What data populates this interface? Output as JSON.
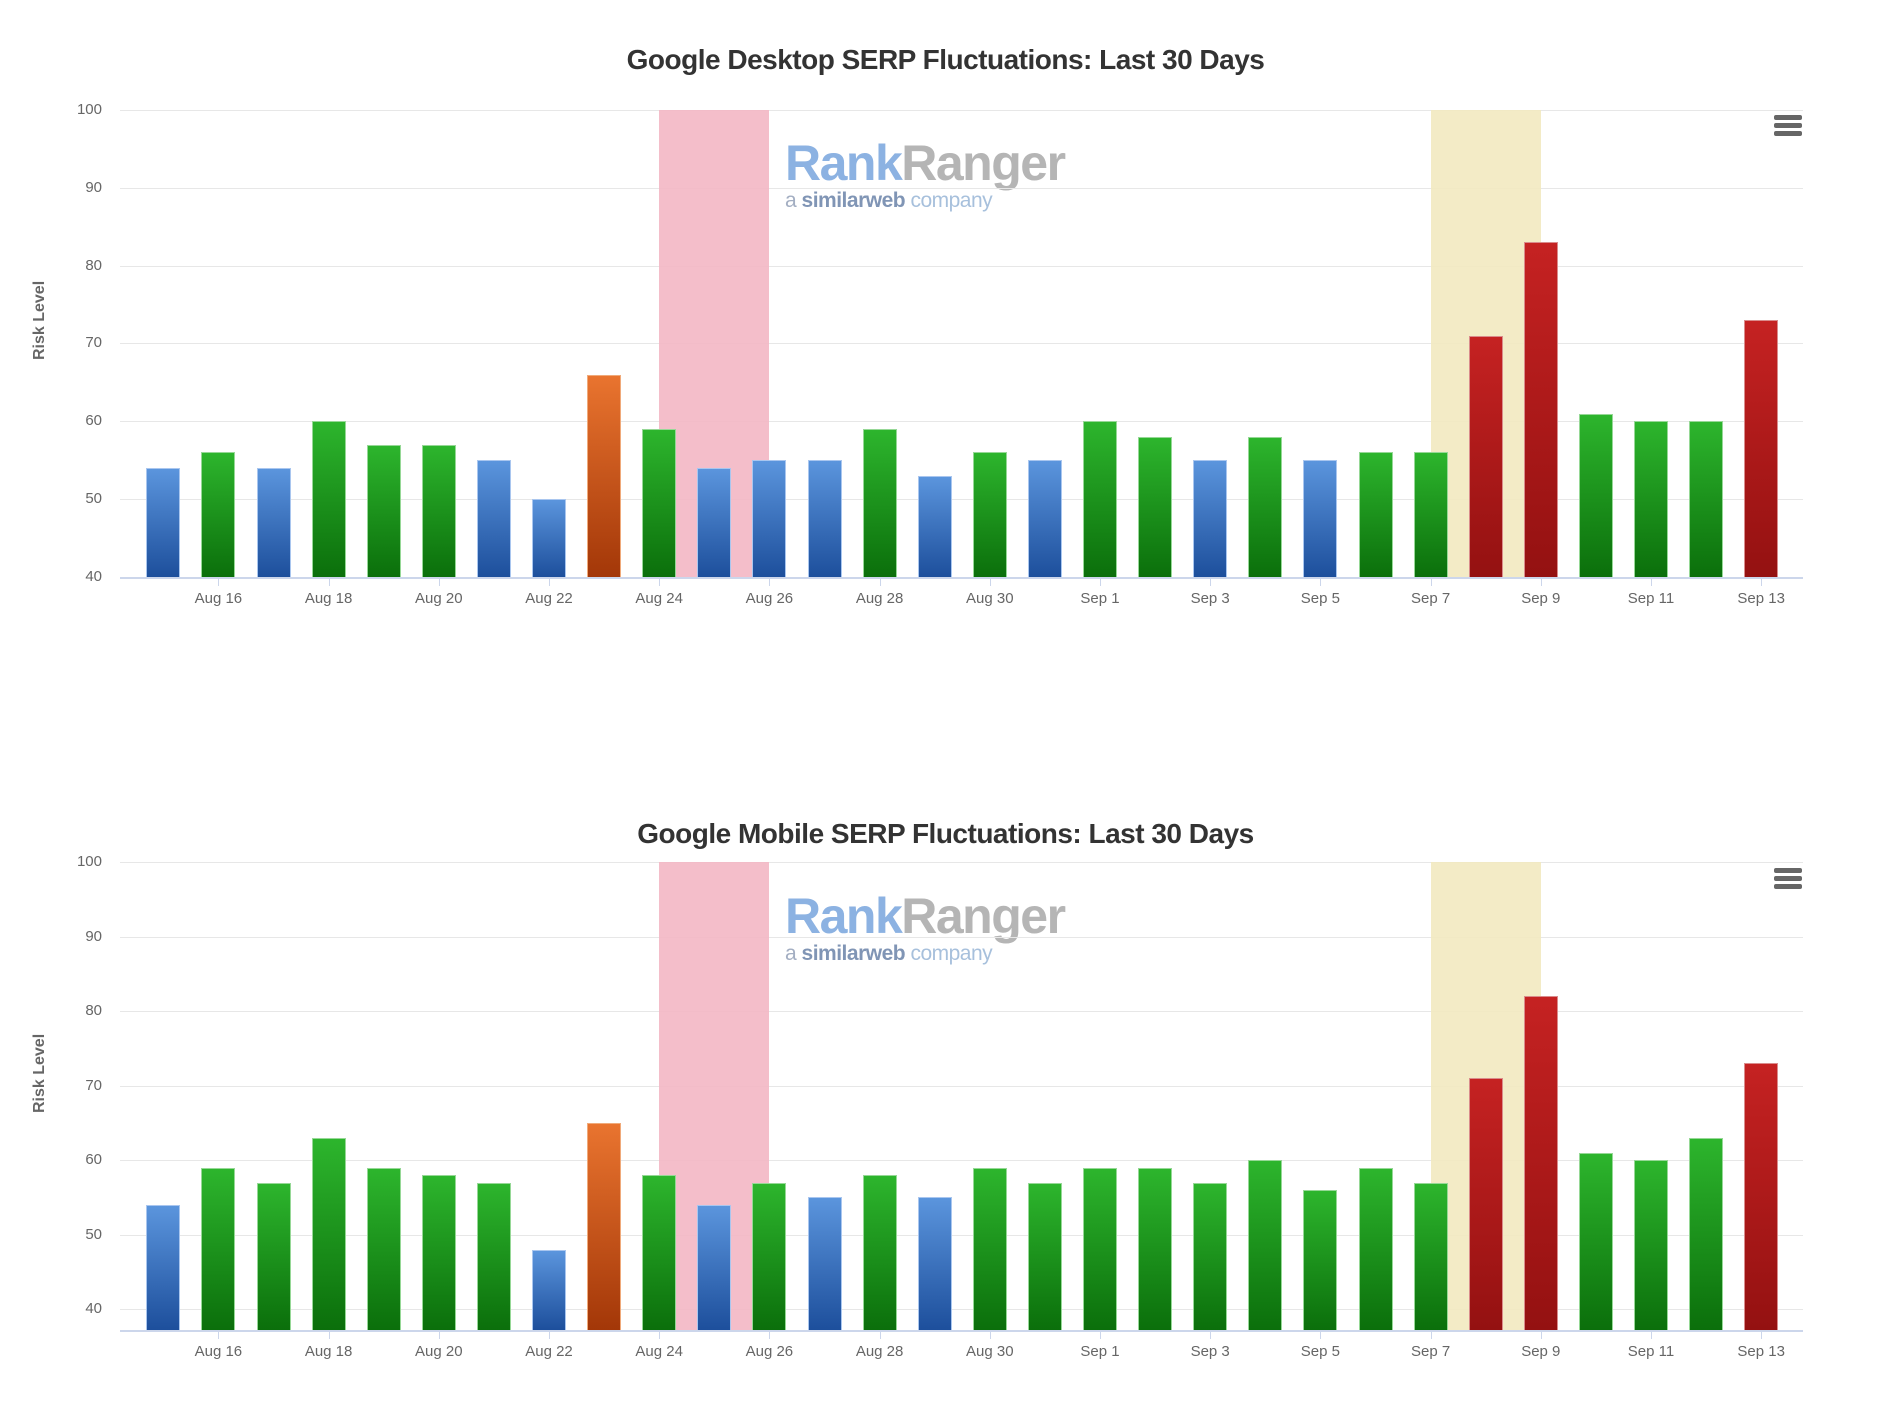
{
  "chart_data": [
    {
      "type": "bar",
      "title": "Google Desktop SERP Fluctuations: Last 30 Days",
      "ylabel": "Risk Level",
      "xlabel": "",
      "categories": [
        "Aug 15",
        "Aug 16",
        "Aug 17",
        "Aug 18",
        "Aug 19",
        "Aug 20",
        "Aug 21",
        "Aug 22",
        "Aug 23",
        "Aug 24",
        "Aug 25",
        "Aug 26",
        "Aug 27",
        "Aug 28",
        "Aug 29",
        "Aug 30",
        "Aug 31",
        "Sep 1",
        "Sep 2",
        "Sep 3",
        "Sep 4",
        "Sep 5",
        "Sep 6",
        "Sep 7",
        "Sep 8",
        "Sep 9",
        "Sep 10",
        "Sep 11",
        "Sep 12",
        "Sep 13"
      ],
      "values": [
        54,
        56,
        54,
        60,
        57,
        57,
        55,
        50,
        66,
        59,
        54,
        55,
        55,
        59,
        53,
        56,
        55,
        60,
        58,
        55,
        58,
        55,
        56,
        56,
        71,
        83,
        61,
        60,
        60,
        73
      ],
      "bar_color_keys": [
        "blue",
        "green",
        "blue",
        "green",
        "green",
        "green",
        "blue",
        "blue",
        "orange",
        "green",
        "blue",
        "blue",
        "blue",
        "green",
        "blue",
        "green",
        "blue",
        "green",
        "green",
        "blue",
        "green",
        "blue",
        "green",
        "green",
        "red",
        "red",
        "green",
        "green",
        "green",
        "red"
      ],
      "yticks": [
        100,
        90,
        80,
        70,
        60,
        50,
        40
      ],
      "ylim": [
        40,
        100
      ],
      "xtick_labels": [
        "Aug 16",
        "Aug 18",
        "Aug 20",
        "Aug 22",
        "Aug 24",
        "Aug 26",
        "Aug 28",
        "Aug 30",
        "Sep 1",
        "Sep 3",
        "Sep 5",
        "Sep 7",
        "Sep 9",
        "Sep 11",
        "Sep 13"
      ],
      "grid": "horizontal",
      "legend": "none",
      "plot_bands": [
        {
          "from": "Aug 24",
          "to": "Aug 26",
          "color_key": "pink"
        },
        {
          "from": "Sep 7",
          "to": "Sep 9",
          "color_key": "yellow"
        }
      ]
    },
    {
      "type": "bar",
      "title": "Google Mobile SERP Fluctuations: Last 30 Days",
      "ylabel": "Risk Level",
      "xlabel": "",
      "categories": [
        "Aug 15",
        "Aug 16",
        "Aug 17",
        "Aug 18",
        "Aug 19",
        "Aug 20",
        "Aug 21",
        "Aug 22",
        "Aug 23",
        "Aug 24",
        "Aug 25",
        "Aug 26",
        "Aug 27",
        "Aug 28",
        "Aug 29",
        "Aug 30",
        "Aug 31",
        "Sep 1",
        "Sep 2",
        "Sep 3",
        "Sep 4",
        "Sep 5",
        "Sep 6",
        "Sep 7",
        "Sep 8",
        "Sep 9",
        "Sep 10",
        "Sep 11",
        "Sep 12",
        "Sep 13"
      ],
      "values": [
        54,
        59,
        57,
        63,
        59,
        58,
        57,
        48,
        65,
        58,
        54,
        57,
        55,
        58,
        55,
        59,
        57,
        59,
        59,
        57,
        60,
        56,
        59,
        57,
        71,
        82,
        61,
        60,
        63,
        73
      ],
      "bar_color_keys": [
        "blue",
        "green",
        "green",
        "green",
        "green",
        "green",
        "green",
        "blue",
        "orange",
        "green",
        "blue",
        "green",
        "blue",
        "green",
        "blue",
        "green",
        "green",
        "green",
        "green",
        "green",
        "green",
        "green",
        "green",
        "green",
        "red",
        "red",
        "green",
        "green",
        "green",
        "red"
      ],
      "yticks": [
        100,
        90,
        80,
        70,
        60,
        50,
        40
      ],
      "ylim": [
        40,
        100
      ],
      "xtick_labels": [
        "Aug 16",
        "Aug 18",
        "Aug 20",
        "Aug 22",
        "Aug 24",
        "Aug 26",
        "Aug 28",
        "Aug 30",
        "Sep 1",
        "Sep 3",
        "Sep 5",
        "Sep 7",
        "Sep 9",
        "Sep 11",
        "Sep 13"
      ],
      "grid": "horizontal",
      "legend": "none",
      "plot_bands": [
        {
          "from": "Aug 24",
          "to": "Aug 26",
          "color_key": "pink"
        },
        {
          "from": "Sep 7",
          "to": "Sep 9",
          "color_key": "yellow"
        }
      ]
    }
  ],
  "watermark": {
    "brand_part1": "Rank",
    "brand_part2": "Ranger",
    "tagline_part1": "a",
    "tagline_part2": "similarweb",
    "tagline_part3": "company"
  },
  "context_menu_icon": "hamburger-icon",
  "colors": {
    "title": "#333333",
    "tick_label": "#666666",
    "axis_line": "#ccd6eb",
    "gridline": "#e7e7e7",
    "menu_icon": "#666666",
    "bar_colors": {
      "blue": {
        "top": "#5b95dd",
        "bottom": "#1d4f9c",
        "border": "#a9c6ef"
      },
      "green": {
        "top": "#2db52d",
        "bottom": "#0b6f0b",
        "border": "#96d896"
      },
      "orange": {
        "top": "#e9742f",
        "bottom": "#a33708",
        "border": "#f0aa7a"
      },
      "red": {
        "top": "#c52222",
        "bottom": "#941111",
        "border": "#da8c8c"
      }
    },
    "band_colors": {
      "pink": "#f3b9c6",
      "yellow": "#f2e9c1"
    },
    "watermark": {
      "rank": "#8cb2e2",
      "ranger": "#b5b5b5",
      "a": "#a3aec2",
      "similarweb": "#8095b5",
      "company": "#a7c0dc"
    }
  }
}
